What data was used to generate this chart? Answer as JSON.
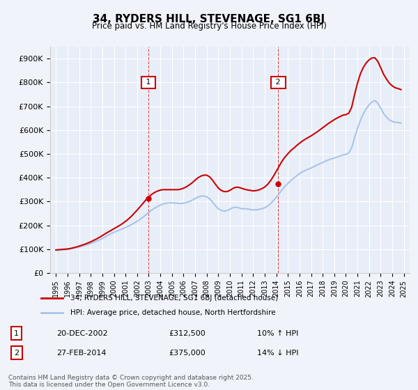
{
  "title": "34, RYDERS HILL, STEVENAGE, SG1 6BJ",
  "subtitle": "Price paid vs. HM Land Registry's House Price Index (HPI)",
  "ylabel": "",
  "background_color": "#f0f4fa",
  "plot_bg_color": "#e8eef8",
  "grid_color": "#ffffff",
  "hpi_color": "#aac4e8",
  "price_color": "#cc0000",
  "vline_color": "#cc0000",
  "marker1_x": 2002.97,
  "marker2_x": 2014.16,
  "marker1_label": "1",
  "marker2_label": "2",
  "xlim": [
    1994.5,
    2025.5
  ],
  "ylim": [
    0,
    950000
  ],
  "yticks": [
    0,
    100000,
    200000,
    300000,
    400000,
    500000,
    600000,
    700000,
    800000,
    900000
  ],
  "ytick_labels": [
    "£0",
    "£100K",
    "£200K",
    "£300K",
    "£400K",
    "£500K",
    "£600K",
    "£700K",
    "£800K",
    "£900K"
  ],
  "xticks": [
    1995,
    1996,
    1997,
    1998,
    1999,
    2000,
    2001,
    2002,
    2003,
    2004,
    2005,
    2006,
    2007,
    2008,
    2009,
    2010,
    2011,
    2012,
    2013,
    2014,
    2015,
    2016,
    2017,
    2018,
    2019,
    2020,
    2021,
    2022,
    2023,
    2024,
    2025
  ],
  "legend_label_price": "34, RYDERS HILL, STEVENAGE, SG1 6BJ (detached house)",
  "legend_label_hpi": "HPI: Average price, detached house, North Hertfordshire",
  "table_entries": [
    {
      "num": "1",
      "date": "20-DEC-2002",
      "price": "£312,500",
      "change": "10% ↑ HPI"
    },
    {
      "num": "2",
      "date": "27-FEB-2014",
      "price": "£375,000",
      "change": "14% ↓ HPI"
    }
  ],
  "footer": "Contains HM Land Registry data © Crown copyright and database right 2025.\nThis data is licensed under the Open Government Licence v3.0.",
  "hpi_data_x": [
    1995.0,
    1995.25,
    1995.5,
    1995.75,
    1996.0,
    1996.25,
    1996.5,
    1996.75,
    1997.0,
    1997.25,
    1997.5,
    1997.75,
    1998.0,
    1998.25,
    1998.5,
    1998.75,
    1999.0,
    1999.25,
    1999.5,
    1999.75,
    2000.0,
    2000.25,
    2000.5,
    2000.75,
    2001.0,
    2001.25,
    2001.5,
    2001.75,
    2002.0,
    2002.25,
    2002.5,
    2002.75,
    2003.0,
    2003.25,
    2003.5,
    2003.75,
    2004.0,
    2004.25,
    2004.5,
    2004.75,
    2005.0,
    2005.25,
    2005.5,
    2005.75,
    2006.0,
    2006.25,
    2006.5,
    2006.75,
    2007.0,
    2007.25,
    2007.5,
    2007.75,
    2008.0,
    2008.25,
    2008.5,
    2008.75,
    2009.0,
    2009.25,
    2009.5,
    2009.75,
    2010.0,
    2010.25,
    2010.5,
    2010.75,
    2011.0,
    2011.25,
    2011.5,
    2011.75,
    2012.0,
    2012.25,
    2012.5,
    2012.75,
    2013.0,
    2013.25,
    2013.5,
    2013.75,
    2014.0,
    2014.25,
    2014.5,
    2014.75,
    2015.0,
    2015.25,
    2015.5,
    2015.75,
    2016.0,
    2016.25,
    2016.5,
    2016.75,
    2017.0,
    2017.25,
    2017.5,
    2017.75,
    2018.0,
    2018.25,
    2018.5,
    2018.75,
    2019.0,
    2019.25,
    2019.5,
    2019.75,
    2020.0,
    2020.25,
    2020.5,
    2020.75,
    2021.0,
    2021.25,
    2021.5,
    2021.75,
    2022.0,
    2022.25,
    2022.5,
    2022.75,
    2023.0,
    2023.25,
    2023.5,
    2023.75,
    2024.0,
    2024.25,
    2024.5,
    2024.75
  ],
  "hpi_data_y": [
    95000,
    96000,
    97000,
    98000,
    99000,
    101000,
    103000,
    106000,
    109000,
    112000,
    116000,
    120000,
    124000,
    129000,
    134000,
    139000,
    145000,
    152000,
    159000,
    165000,
    171000,
    176000,
    181000,
    186000,
    191000,
    197000,
    203000,
    210000,
    217000,
    225000,
    234000,
    244000,
    254000,
    264000,
    272000,
    279000,
    285000,
    290000,
    293000,
    295000,
    295000,
    294000,
    293000,
    292000,
    293000,
    296000,
    300000,
    306000,
    313000,
    319000,
    323000,
    323000,
    320000,
    312000,
    298000,
    283000,
    270000,
    263000,
    260000,
    262000,
    268000,
    274000,
    276000,
    274000,
    270000,
    270000,
    269000,
    267000,
    265000,
    265000,
    267000,
    270000,
    274000,
    281000,
    291000,
    304000,
    318000,
    334000,
    350000,
    364000,
    376000,
    388000,
    398000,
    408000,
    417000,
    425000,
    431000,
    436000,
    441000,
    447000,
    453000,
    459000,
    464000,
    470000,
    475000,
    479000,
    483000,
    487000,
    491000,
    496000,
    498000,
    504000,
    526000,
    568000,
    607000,
    641000,
    668000,
    689000,
    706000,
    718000,
    724000,
    713000,
    693000,
    670000,
    655000,
    643000,
    637000,
    633000,
    632000,
    630000
  ],
  "price_data_x": [
    1995.0,
    1995.25,
    1995.5,
    1995.75,
    1996.0,
    1996.25,
    1996.5,
    1996.75,
    1997.0,
    1997.25,
    1997.5,
    1997.75,
    1998.0,
    1998.25,
    1998.5,
    1998.75,
    1999.0,
    1999.25,
    1999.5,
    1999.75,
    2000.0,
    2000.25,
    2000.5,
    2000.75,
    2001.0,
    2001.25,
    2001.5,
    2001.75,
    2002.0,
    2002.25,
    2002.5,
    2002.75,
    2003.0,
    2003.25,
    2003.5,
    2003.75,
    2004.0,
    2004.25,
    2004.5,
    2004.75,
    2005.0,
    2005.25,
    2005.5,
    2005.75,
    2006.0,
    2006.25,
    2006.5,
    2006.75,
    2007.0,
    2007.25,
    2007.5,
    2007.75,
    2008.0,
    2008.25,
    2008.5,
    2008.75,
    2009.0,
    2009.25,
    2009.5,
    2009.75,
    2010.0,
    2010.25,
    2010.5,
    2010.75,
    2011.0,
    2011.25,
    2011.5,
    2011.75,
    2012.0,
    2012.25,
    2012.5,
    2012.75,
    2013.0,
    2013.25,
    2013.5,
    2013.75,
    2014.0,
    2014.25,
    2014.5,
    2014.75,
    2015.0,
    2015.25,
    2015.5,
    2015.75,
    2016.0,
    2016.25,
    2016.5,
    2016.75,
    2017.0,
    2017.25,
    2017.5,
    2017.75,
    2018.0,
    2018.25,
    2018.5,
    2018.75,
    2019.0,
    2019.25,
    2019.5,
    2019.75,
    2020.0,
    2020.25,
    2020.5,
    2020.75,
    2021.0,
    2021.25,
    2021.5,
    2021.75,
    2022.0,
    2022.25,
    2022.5,
    2022.75,
    2023.0,
    2023.25,
    2023.5,
    2023.75,
    2024.0,
    2024.25,
    2024.5,
    2024.75
  ],
  "price_data_y": [
    97000,
    98000,
    99000,
    100000,
    101000,
    103000,
    106000,
    109000,
    113000,
    117000,
    121000,
    126000,
    131000,
    137000,
    143000,
    150000,
    157000,
    165000,
    172000,
    179000,
    186000,
    193000,
    200000,
    208000,
    217000,
    227000,
    238000,
    251000,
    264000,
    278000,
    292000,
    307000,
    319000,
    330000,
    338000,
    344000,
    348000,
    350000,
    350000,
    350000,
    350000,
    350000,
    350000,
    352000,
    356000,
    362000,
    370000,
    379000,
    390000,
    400000,
    407000,
    411000,
    411000,
    404000,
    390000,
    373000,
    357000,
    347000,
    342000,
    342000,
    347000,
    355000,
    360000,
    360000,
    356000,
    352000,
    349000,
    347000,
    345000,
    346000,
    349000,
    354000,
    361000,
    372000,
    387000,
    406000,
    427000,
    449000,
    470000,
    487000,
    501000,
    514000,
    524000,
    535000,
    545000,
    554000,
    562000,
    569000,
    576000,
    584000,
    592000,
    601000,
    610000,
    619000,
    628000,
    636000,
    644000,
    651000,
    657000,
    663000,
    665000,
    671000,
    696000,
    749000,
    797000,
    836000,
    863000,
    882000,
    895000,
    903000,
    904000,
    889000,
    863000,
    835000,
    815000,
    797000,
    786000,
    778000,
    775000,
    770000
  ]
}
